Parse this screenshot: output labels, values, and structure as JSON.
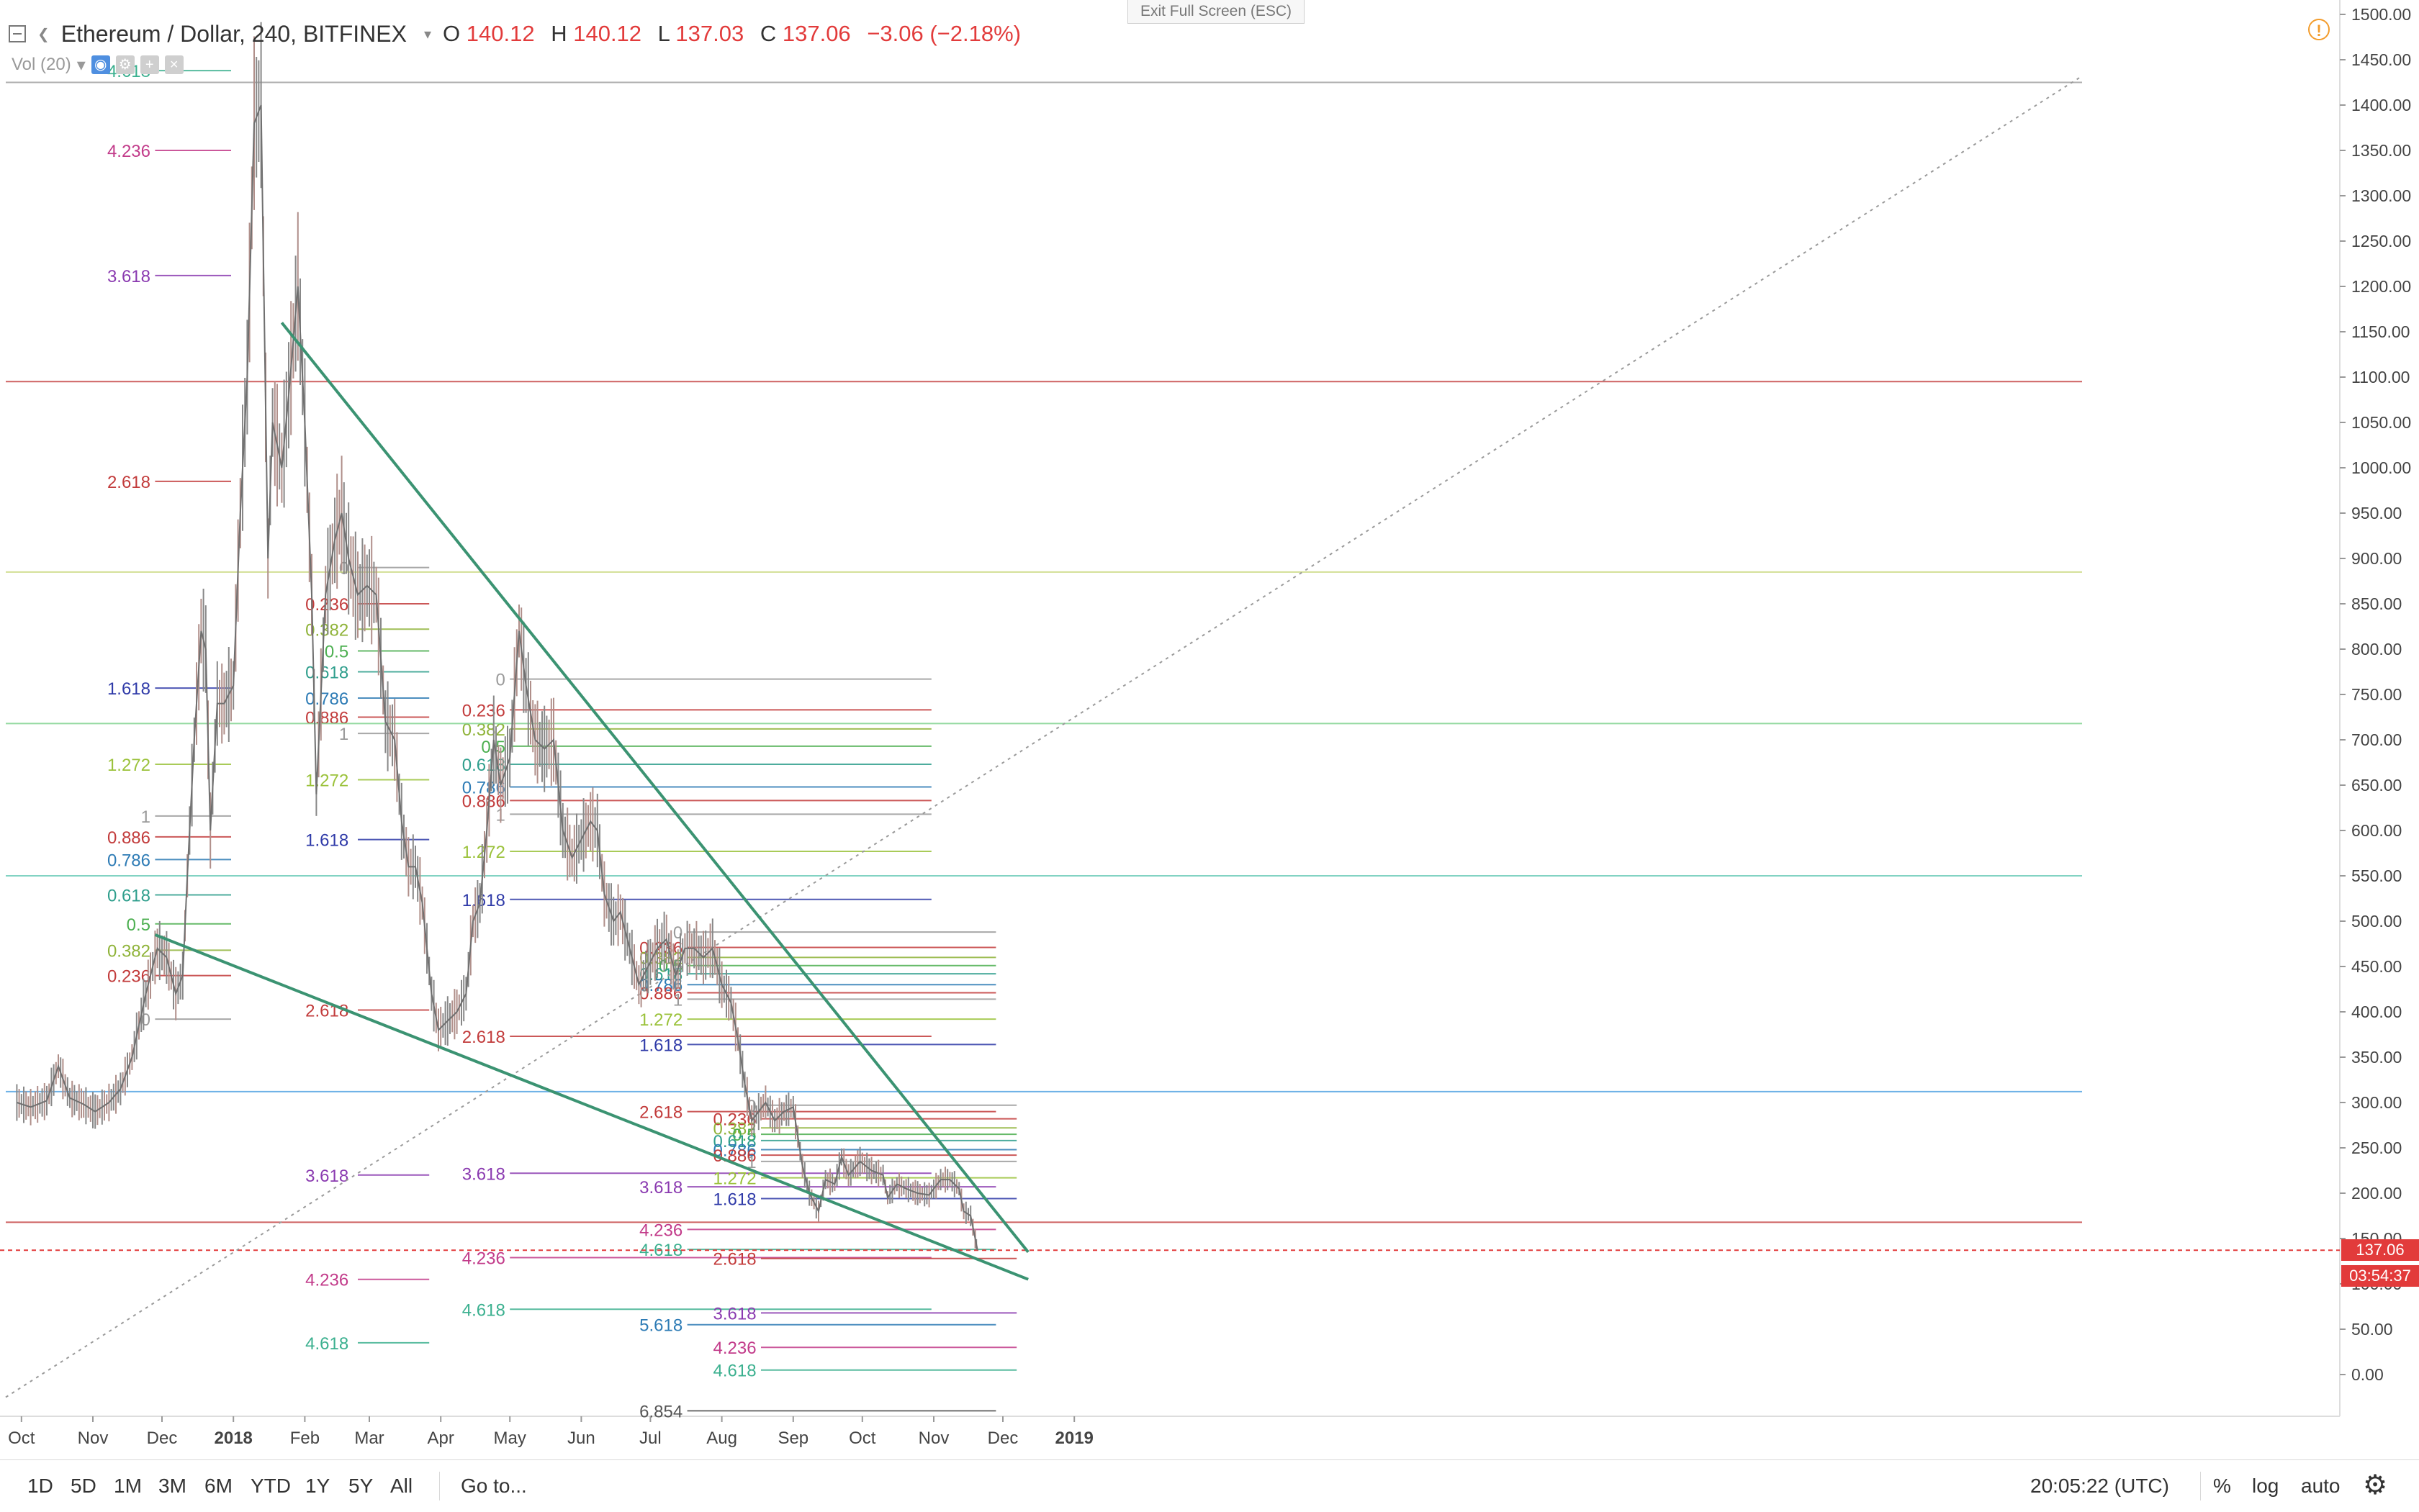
{
  "header": {
    "symbol": "Ethereum / Dollar, 240, BITFINEX",
    "o_label": "O",
    "o_value": "140.12",
    "h_label": "H",
    "h_value": "140.12",
    "l_label": "L",
    "l_value": "137.03",
    "c_label": "C",
    "c_value": "137.06",
    "change": "−3.06 (−2.18%)",
    "vol_label": "Vol (20)",
    "exit_fullscreen": "Exit Full Screen (ESC)"
  },
  "price_tags": {
    "last_price": "137.06",
    "countdown": "03:54:37"
  },
  "bottom": {
    "ranges": [
      "1D",
      "5D",
      "1M",
      "3M",
      "6M",
      "YTD",
      "1Y",
      "5Y",
      "All"
    ],
    "goto": "Go to...",
    "clock": "20:05:22 (UTC)",
    "percent": "%",
    "log": "log",
    "auto": "auto"
  },
  "colors": {
    "up": "#888888",
    "down": "#b08f8a",
    "trendline": "#3b9372",
    "last_price": "#e23b3b",
    "fib_0": "#9a9a9a",
    "fib_0236": "#c23b3b",
    "fib_0382": "#8fb339",
    "fib_05": "#4caf50",
    "fib_0618": "#2e9e8c",
    "fib_0786": "#2d7bb5",
    "fib_1": "#9a9a9a",
    "fib_1272": "#9bc23b",
    "fib_1618": "#2f3aa8",
    "fib_2618": "#c23b3b",
    "fib_3618": "#8a3ab0",
    "fib_4236": "#c23b8a",
    "fib_4618": "#3bb08f"
  },
  "chart_data": {
    "type": "line",
    "title": "Ethereum / Dollar, 240, BITFINEX",
    "xlabel": "",
    "ylabel": "",
    "ylim": [
      -40,
      1510
    ],
    "y_ticks": [
      "1500.00",
      "1450.00",
      "1400.00",
      "1350.00",
      "1300.00",
      "1250.00",
      "1200.00",
      "1150.00",
      "1100.00",
      "1050.00",
      "1000.00",
      "950.00",
      "900.00",
      "850.00",
      "800.00",
      "750.00",
      "700.00",
      "650.00",
      "600.00",
      "550.00",
      "500.00",
      "450.00",
      "400.00",
      "350.00",
      "300.00",
      "250.00",
      "200.00",
      "150.00",
      "100.00",
      "50.00",
      "0.00"
    ],
    "x_ticks": [
      {
        "label": "Oct",
        "date": "2017-10-01"
      },
      {
        "label": "Nov",
        "date": "2017-11-01"
      },
      {
        "label": "Dec",
        "date": "2017-12-01"
      },
      {
        "label": "2018",
        "date": "2018-01-01"
      },
      {
        "label": "Feb",
        "date": "2018-02-01"
      },
      {
        "label": "Mar",
        "date": "2018-03-01"
      },
      {
        "label": "Apr",
        "date": "2018-04-01"
      },
      {
        "label": "May",
        "date": "2018-05-01"
      },
      {
        "label": "Jun",
        "date": "2018-06-01"
      },
      {
        "label": "Jul",
        "date": "2018-07-01"
      },
      {
        "label": "Aug",
        "date": "2018-08-01"
      },
      {
        "label": "Sep",
        "date": "2018-09-01"
      },
      {
        "label": "Oct",
        "date": "2018-10-01"
      },
      {
        "label": "Nov",
        "date": "2018-11-01"
      },
      {
        "label": "Dec",
        "date": "2018-12-01"
      },
      {
        "label": "2019",
        "date": "2019-01-01"
      }
    ],
    "series": [
      {
        "name": "ETHUSD",
        "points": [
          [
            "2017-09-29",
            300
          ],
          [
            "2017-10-05",
            295
          ],
          [
            "2017-10-12",
            302
          ],
          [
            "2017-10-17",
            340
          ],
          [
            "2017-10-22",
            305
          ],
          [
            "2017-10-28",
            298
          ],
          [
            "2017-11-02",
            290
          ],
          [
            "2017-11-08",
            300
          ],
          [
            "2017-11-13",
            315
          ],
          [
            "2017-11-18",
            350
          ],
          [
            "2017-11-24",
            420
          ],
          [
            "2017-11-29",
            470
          ],
          [
            "2017-12-03",
            460
          ],
          [
            "2017-12-07",
            420
          ],
          [
            "2017-12-10",
            440
          ],
          [
            "2017-12-12",
            550
          ],
          [
            "2017-12-15",
            700
          ],
          [
            "2017-12-18",
            820
          ],
          [
            "2017-12-20",
            800
          ],
          [
            "2017-12-22",
            600
          ],
          [
            "2017-12-25",
            740
          ],
          [
            "2017-12-28",
            740
          ],
          [
            "2018-01-01",
            760
          ],
          [
            "2018-01-04",
            950
          ],
          [
            "2018-01-07",
            1100
          ],
          [
            "2018-01-10",
            1380
          ],
          [
            "2018-01-13",
            1400
          ],
          [
            "2018-01-16",
            900
          ],
          [
            "2018-01-18",
            1050
          ],
          [
            "2018-01-22",
            1000
          ],
          [
            "2018-01-25",
            1080
          ],
          [
            "2018-01-29",
            1200
          ],
          [
            "2018-02-01",
            1050
          ],
          [
            "2018-02-04",
            860
          ],
          [
            "2018-02-06",
            640
          ],
          [
            "2018-02-10",
            860
          ],
          [
            "2018-02-14",
            920
          ],
          [
            "2018-02-17",
            950
          ],
          [
            "2018-02-20",
            900
          ],
          [
            "2018-02-24",
            860
          ],
          [
            "2018-02-28",
            870
          ],
          [
            "2018-03-04",
            860
          ],
          [
            "2018-03-08",
            720
          ],
          [
            "2018-03-12",
            700
          ],
          [
            "2018-03-15",
            610
          ],
          [
            "2018-03-18",
            560
          ],
          [
            "2018-03-21",
            560
          ],
          [
            "2018-03-24",
            520
          ],
          [
            "2018-03-28",
            420
          ],
          [
            "2018-03-31",
            380
          ],
          [
            "2018-04-04",
            390
          ],
          [
            "2018-04-08",
            400
          ],
          [
            "2018-04-12",
            420
          ],
          [
            "2018-04-15",
            500
          ],
          [
            "2018-04-18",
            520
          ],
          [
            "2018-04-21",
            600
          ],
          [
            "2018-04-24",
            700
          ],
          [
            "2018-04-27",
            650
          ],
          [
            "2018-05-01",
            680
          ],
          [
            "2018-05-05",
            820
          ],
          [
            "2018-05-08",
            760
          ],
          [
            "2018-05-12",
            700
          ],
          [
            "2018-05-16",
            690
          ],
          [
            "2018-05-20",
            700
          ],
          [
            "2018-05-24",
            600
          ],
          [
            "2018-05-28",
            570
          ],
          [
            "2018-06-01",
            590
          ],
          [
            "2018-06-05",
            610
          ],
          [
            "2018-06-08",
            600
          ],
          [
            "2018-06-11",
            530
          ],
          [
            "2018-06-15",
            500
          ],
          [
            "2018-06-18",
            510
          ],
          [
            "2018-06-22",
            470
          ],
          [
            "2018-06-26",
            430
          ],
          [
            "2018-06-30",
            450
          ],
          [
            "2018-07-04",
            470
          ],
          [
            "2018-07-08",
            480
          ],
          [
            "2018-07-12",
            440
          ],
          [
            "2018-07-16",
            470
          ],
          [
            "2018-07-20",
            470
          ],
          [
            "2018-07-24",
            460
          ],
          [
            "2018-07-28",
            470
          ],
          [
            "2018-08-01",
            430
          ],
          [
            "2018-08-05",
            410
          ],
          [
            "2018-08-08",
            370
          ],
          [
            "2018-08-11",
            320
          ],
          [
            "2018-08-14",
            280
          ],
          [
            "2018-08-17",
            290
          ],
          [
            "2018-08-20",
            300
          ],
          [
            "2018-08-24",
            280
          ],
          [
            "2018-08-28",
            290
          ],
          [
            "2018-09-01",
            295
          ],
          [
            "2018-09-05",
            230
          ],
          [
            "2018-09-08",
            200
          ],
          [
            "2018-09-12",
            180
          ],
          [
            "2018-09-15",
            215
          ],
          [
            "2018-09-19",
            210
          ],
          [
            "2018-09-22",
            240
          ],
          [
            "2018-09-25",
            220
          ],
          [
            "2018-09-30",
            235
          ],
          [
            "2018-10-05",
            225
          ],
          [
            "2018-10-10",
            220
          ],
          [
            "2018-10-12",
            195
          ],
          [
            "2018-10-16",
            210
          ],
          [
            "2018-10-20",
            205
          ],
          [
            "2018-10-25",
            200
          ],
          [
            "2018-10-30",
            198
          ],
          [
            "2018-11-04",
            215
          ],
          [
            "2018-11-08",
            215
          ],
          [
            "2018-11-12",
            205
          ],
          [
            "2018-11-14",
            180
          ],
          [
            "2018-11-17",
            175
          ],
          [
            "2018-11-19",
            150
          ],
          [
            "2018-11-20",
            137.06
          ]
        ]
      }
    ],
    "trendlines": [
      {
        "name": "upper",
        "from": [
          "2018-01-22",
          1160
        ],
        "to": [
          "2018-12-12",
          135
        ]
      },
      {
        "name": "lower",
        "from": [
          "2017-11-28",
          485
        ],
        "to": [
          "2018-12-12",
          105
        ]
      }
    ],
    "horizontal_lines": [
      {
        "label": "",
        "value": 1425
      },
      {
        "label": "",
        "value": 1095
      },
      {
        "label": "",
        "value": 885
      },
      {
        "label": "",
        "value": 718
      },
      {
        "label": "",
        "value": 550
      },
      {
        "label": "",
        "value": 312
      },
      {
        "label": "",
        "value": 168
      }
    ],
    "last_price": 137.06,
    "fibonacci_levels": [
      {
        "name": "fib-dec-2017",
        "x_from": "2017-11-28",
        "x_to": "2017-12-31",
        "label_date": "2017-11-26",
        "levels": [
          [
            "0",
            392
          ],
          [
            "0.236",
            440
          ],
          [
            "0.382",
            468
          ],
          [
            "0.5",
            497
          ],
          [
            "0.618",
            529
          ],
          [
            "0.786",
            568
          ],
          [
            "0.886",
            593
          ],
          [
            "1",
            616
          ],
          [
            "1.272",
            673
          ],
          [
            "1.618",
            757
          ],
          [
            "2.618",
            985
          ],
          [
            "3.618",
            1212
          ],
          [
            "4.236",
            1350
          ],
          [
            "4.618",
            1438
          ]
        ]
      },
      {
        "name": "fib-feb-2018",
        "x_from": "2018-02-24",
        "x_to": "2018-03-27",
        "label_date": "2018-02-20",
        "levels": [
          [
            "0",
            890
          ],
          [
            "0.236",
            850
          ],
          [
            "0.382",
            822
          ],
          [
            "0.5",
            798
          ],
          [
            "0.618",
            775
          ],
          [
            "0.786",
            746
          ],
          [
            "0.886",
            725
          ],
          [
            "1",
            707
          ],
          [
            "1.272",
            656
          ],
          [
            "1.618",
            590
          ],
          [
            "2.618",
            402
          ],
          [
            "3.618",
            220
          ],
          [
            "4.236",
            105
          ],
          [
            "4.618",
            35
          ]
        ]
      },
      {
        "name": "fib-may-2018",
        "x_from": "2018-05-01",
        "x_to": "2018-10-31",
        "label_date": "2018-04-29",
        "levels": [
          [
            "0",
            767
          ],
          [
            "0.236",
            733
          ],
          [
            "0.382",
            712
          ],
          [
            "0.5",
            693
          ],
          [
            "0.618",
            673
          ],
          [
            "0.786",
            648
          ],
          [
            "0.886",
            633
          ],
          [
            "1",
            618
          ],
          [
            "1.272",
            577
          ],
          [
            "1.618",
            524
          ],
          [
            "2.618",
            373
          ],
          [
            "3.618",
            222
          ],
          [
            "4.236",
            129
          ],
          [
            "4.618",
            72
          ]
        ]
      },
      {
        "name": "fib-jul-2018",
        "x_from": "2018-07-17",
        "x_to": "2018-11-28",
        "label_date": "2018-07-15",
        "levels": [
          [
            "0",
            488
          ],
          [
            "0.236",
            471
          ],
          [
            "0.382",
            460
          ],
          [
            "0.5",
            451
          ],
          [
            "0.618",
            442
          ],
          [
            "0.786",
            430
          ],
          [
            "0.886",
            421
          ],
          [
            "1",
            414
          ],
          [
            "1.272",
            392
          ],
          [
            "1.618",
            364
          ],
          [
            "2.618",
            290
          ],
          [
            "3.618",
            207
          ],
          [
            "4.236",
            160
          ],
          [
            "4.618",
            138
          ],
          [
            "5.618",
            55
          ],
          [
            "6.854",
            -40
          ]
        ]
      },
      {
        "name": "fib-aug-2018",
        "x_from": "2018-08-18",
        "x_to": "2018-12-07",
        "label_date": "2018-08-16",
        "levels": [
          [
            "0",
            297
          ],
          [
            "0.236",
            282
          ],
          [
            "0.382",
            272
          ],
          [
            "0.5",
            265
          ],
          [
            "0.618",
            258
          ],
          [
            "0.786",
            248
          ],
          [
            "0.886",
            242
          ],
          [
            "1",
            235
          ],
          [
            "1.272",
            217
          ],
          [
            "1.618",
            194
          ],
          [
            "2.618",
            128
          ],
          [
            "3.618",
            68
          ],
          [
            "4.236",
            30
          ],
          [
            "4.618",
            5
          ]
        ]
      }
    ]
  }
}
